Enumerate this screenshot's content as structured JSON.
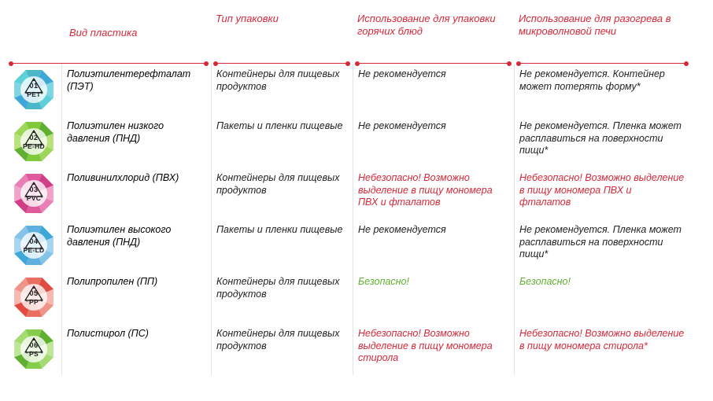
{
  "headers": {
    "type": "Вид пластика",
    "packaging": "Тип упаковки",
    "hot": "Использование для упаковки горячих блюд",
    "microwave": "Использование для разогрева в микроволновой печи"
  },
  "colors": {
    "header": "#d62839",
    "blue": "#3da8d8",
    "green": "#5fb030",
    "red": "#d62839",
    "text": "#222222"
  },
  "rows": [
    {
      "num": "01",
      "code": "PET",
      "icon_colors": [
        "#7fd6e0",
        "#5fcfd8",
        "#4ab8c9",
        "#3da8d8"
      ],
      "name": "Полиэтилентерефталат (ПЭТ)",
      "name_class": "name-1",
      "packaging": "Контейнеры для пищевых продуктов",
      "hot": "Не рекомендуется",
      "hot_class": "black",
      "microwave": "Не рекомендуется. Контейнер может потерять форму*",
      "microwave_class": "black"
    },
    {
      "num": "02",
      "code": "PE-HD",
      "icon_colors": [
        "#b8e27d",
        "#9dd75a",
        "#7fc93b",
        "#5fb030"
      ],
      "name": "Полиэтилен низкого давления (ПНД)",
      "name_class": "name-2",
      "packaging": "Пакеты и пленки пищевые",
      "hot": "Не рекомендуется",
      "hot_class": "black",
      "microwave": "Не рекомендуется. Пленка может расплавиться на поверхности пищи*",
      "microwave_class": "black"
    },
    {
      "num": "03",
      "code": "PVC",
      "icon_colors": [
        "#f2a3c8",
        "#e87fb5",
        "#de5a9d",
        "#d13e88"
      ],
      "name": "Поливинилхлорид (ПВХ)",
      "name_class": "name-3",
      "packaging": "Контейнеры для пищевых продуктов",
      "hot": "Небезопасно! Возможно выделение в пищу мономера ПВХ и фталатов",
      "hot_class": "danger",
      "microwave": "Небезопасно! Возможно выделение в пищу мономера ПВХ и фталатов",
      "microwave_class": "danger"
    },
    {
      "num": "04",
      "code": "PE-LD",
      "icon_colors": [
        "#a9d4f0",
        "#85c3e8",
        "#5fb0de",
        "#3da8d8"
      ],
      "name": "Полиэтилен высокого давления (ПНД)",
      "name_class": "name-4",
      "packaging": "Пакеты и пленки пищевые",
      "hot": "Не рекомендуется",
      "hot_class": "black",
      "microwave": "Не рекомендуется. Пленка может расплавиться на поверхности пищи*",
      "microwave_class": "black"
    },
    {
      "num": "05",
      "code": "PP",
      "icon_colors": [
        "#f6b8b0",
        "#ef9488",
        "#e86f62",
        "#df4b40"
      ],
      "name": "Полипропилен (ПП)",
      "name_class": "name-5",
      "packaging": "Контейнеры для пищевых продуктов",
      "hot": "Безопасно!",
      "hot_class": "safe",
      "microwave": "Безопасно!",
      "microwave_class": "safe"
    },
    {
      "num": "06",
      "code": "PS",
      "icon_colors": [
        "#bfe79a",
        "#a4db73",
        "#86cd4c",
        "#5fb030"
      ],
      "name": "Полистирол (ПС)",
      "name_class": "name-6",
      "packaging": "Контейнеры для пищевых продуктов",
      "hot": "Небезопасно! Возможно выделение в пищу мономера стирола",
      "hot_class": "danger",
      "microwave": "Небезопасно! Возможно выделение в пищу мономера стирола*",
      "microwave_class": "danger"
    }
  ]
}
